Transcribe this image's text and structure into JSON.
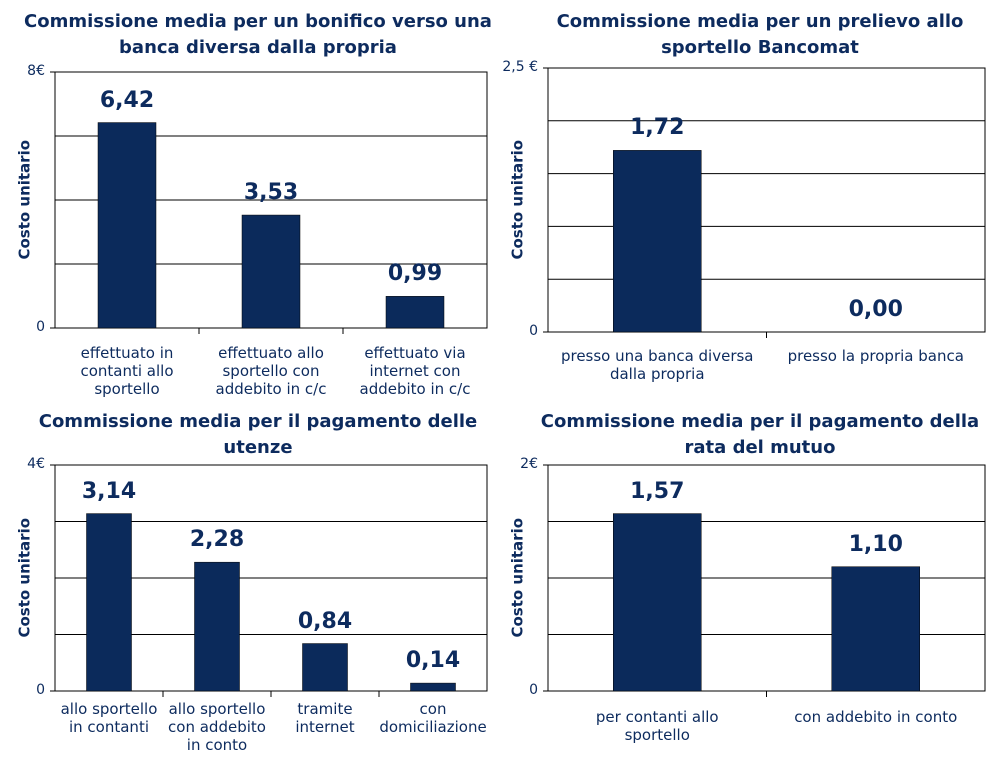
{
  "chart_data": [
    {
      "type": "bar",
      "title": "Commissione media per un bonifico verso una banca diversa dalla propria",
      "ylabel": "Costo unitario",
      "categories": [
        "effettuato in contanti allo sportello",
        "effettuato allo sportello con addebito in c/c",
        "effettuato via internet con addebito in c/c"
      ],
      "values": [
        6.42,
        3.53,
        0.99
      ],
      "value_labels": [
        "6,42",
        "3,53",
        "0,99"
      ],
      "color": "#0b2a5b",
      "ylim": [
        0,
        8
      ],
      "yticks": [
        0,
        {
          "value": 8,
          "label": "8€"
        }
      ],
      "ygrid": [
        2,
        4,
        6
      ]
    },
    {
      "type": "bar",
      "title": "Commissione media per un prelievo allo sportello Bancomat",
      "ylabel": "Costo unitario",
      "categories": [
        "presso una banca diversa dalla propria",
        "presso la propria banca"
      ],
      "values": [
        1.72,
        0.0
      ],
      "value_labels": [
        "1,72",
        "0,00"
      ],
      "color": "#0b2a5b",
      "ylim": [
        0,
        2.5
      ],
      "yticks": [
        0,
        {
          "value": 2.5,
          "label": "2,5 €"
        }
      ],
      "ygrid": [
        0.5,
        1,
        1.5,
        2
      ]
    },
    {
      "type": "bar",
      "title": "Commissione media per il pagamento delle utenze",
      "ylabel": "Costo unitario",
      "categories": [
        "allo sportello in contanti",
        "allo sportello con addebito in conto",
        "tramite internet",
        "con domiciliazione"
      ],
      "values": [
        3.14,
        2.28,
        0.84,
        0.14
      ],
      "value_labels": [
        "3,14",
        "2,28",
        "0,84",
        "0,14"
      ],
      "color": "#0b2a5b",
      "ylim": [
        0,
        4
      ],
      "yticks": [
        0,
        {
          "value": 4,
          "label": "4€"
        }
      ],
      "ygrid": [
        1,
        2,
        3
      ]
    },
    {
      "type": "bar",
      "title": "Commissione media per il pagamento della rata del mutuo",
      "ylabel": "Costo unitario",
      "categories": [
        "per contanti allo sportello",
        "con addebito in conto"
      ],
      "values": [
        1.57,
        1.1
      ],
      "value_labels": [
        "1,57",
        "1,10"
      ],
      "color": "#0b2a5b",
      "ylim": [
        0,
        2
      ],
      "yticks": [
        0,
        {
          "value": 2,
          "label": "2€"
        }
      ],
      "ygrid": [
        0.5,
        1,
        1.5
      ]
    }
  ]
}
